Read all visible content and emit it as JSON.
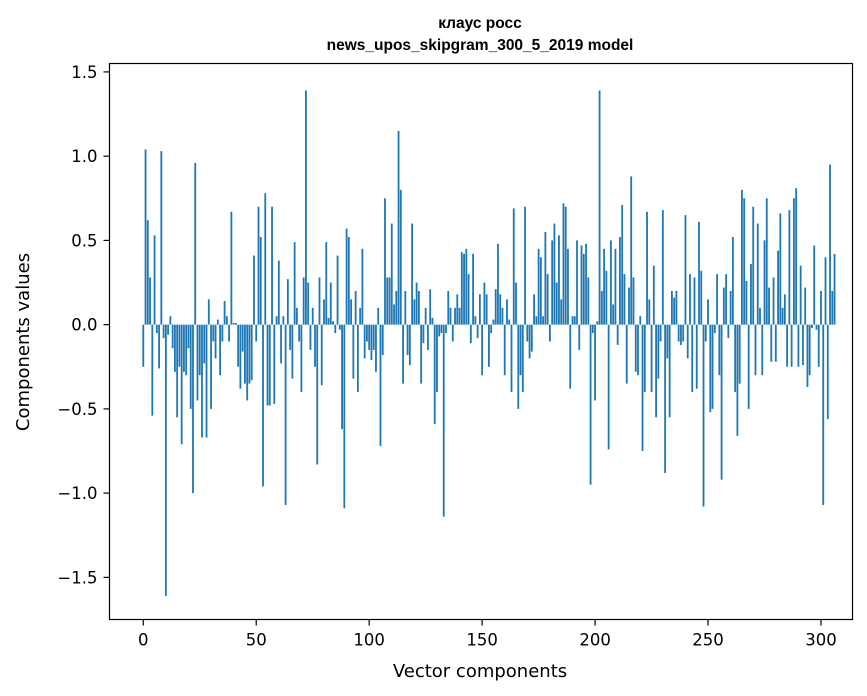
{
  "chart_data": {
    "type": "bar",
    "title_line1": "клаус росс",
    "title_line2": "news_upos_skipgram_300_5_2019 model",
    "xlabel": "Vector components",
    "ylabel": "Components values",
    "xlim": [
      -14.95,
      313.95
    ],
    "ylim": [
      -1.75,
      1.55
    ],
    "x_ticks": [
      0,
      50,
      100,
      150,
      200,
      250,
      300
    ],
    "x_tick_labels": [
      "0",
      "50",
      "100",
      "150",
      "200",
      "250",
      "300"
    ],
    "y_ticks": [
      1.5,
      1.0,
      0.5,
      0.0,
      -0.5,
      -1.0,
      -1.5
    ],
    "y_tick_labels": [
      "1.5",
      "1.0",
      "0.5",
      "0.0",
      "−0.5",
      "−1.0",
      "−1.5"
    ],
    "bar_color": "#1f77b4",
    "values": [
      -0.25,
      1.04,
      0.62,
      0.28,
      -0.54,
      0.53,
      -0.05,
      -0.26,
      1.03,
      -0.08,
      -1.61,
      -0.06,
      0.05,
      -0.14,
      -0.28,
      -0.55,
      -0.25,
      -0.71,
      -0.28,
      -0.3,
      -0.14,
      -0.5,
      -1.0,
      0.96,
      -0.45,
      -0.3,
      -0.67,
      -0.23,
      -0.67,
      0.15,
      -0.5,
      -0.1,
      -0.2,
      0.03,
      -0.3,
      -0.1,
      0.14,
      0.05,
      -0.1,
      0.67,
      0.01,
      0.01,
      -0.25,
      -0.38,
      -0.16,
      -0.35,
      -0.45,
      -0.35,
      -0.33,
      0.41,
      -0.1,
      0.7,
      0.52,
      -0.96,
      0.78,
      -0.48,
      -0.48,
      0.7,
      -0.47,
      0.05,
      0.38,
      -0.23,
      0.05,
      -1.07,
      0.27,
      -0.15,
      -0.32,
      0.49,
      0.1,
      -0.1,
      -0.4,
      0.28,
      1.39,
      0.25,
      -0.15,
      0.1,
      -0.25,
      -0.83,
      0.28,
      -0.36,
      0.15,
      0.49,
      0.04,
      0.25,
      0.02,
      -0.05,
      0.41,
      -0.03,
      -0.62,
      -1.09,
      0.57,
      0.52,
      0.15,
      -0.32,
      0.2,
      -0.4,
      0.1,
      0.45,
      -0.2,
      -0.1,
      -0.15,
      -0.21,
      -0.15,
      -0.28,
      0.1,
      -0.72,
      -0.18,
      0.75,
      0.28,
      0.28,
      0.6,
      0.12,
      0.2,
      1.15,
      0.8,
      -0.35,
      0.2,
      -0.18,
      -0.24,
      0.6,
      0.15,
      0.25,
      0.2,
      -0.35,
      -0.11,
      0.1,
      -0.15,
      0.21,
      0.04,
      -0.59,
      -0.4,
      -0.07,
      -0.05,
      -1.14,
      -0.05,
      0.2,
      0.1,
      -0.1,
      0.1,
      0.18,
      0.1,
      0.43,
      0.42,
      0.45,
      0.3,
      -0.11,
      0.42,
      0.05,
      -0.08,
      0.18,
      -0.3,
      0.25,
      0.18,
      -0.25,
      -0.05,
      0.03,
      0.21,
      0.48,
      0.18,
      0.1,
      -0.3,
      0.15,
      0.03,
      -0.4,
      0.69,
      0.25,
      -0.5,
      -0.3,
      -0.4,
      0.7,
      -0.1,
      -0.2,
      -0.16,
      0.18,
      0.05,
      0.45,
      0.4,
      0.05,
      0.55,
      0.3,
      -0.1,
      0.5,
      0.6,
      0.25,
      0.53,
      0.15,
      0.72,
      0.7,
      0.45,
      -0.38,
      0.05,
      0.05,
      0.5,
      -0.15,
      0.47,
      0.42,
      0.48,
      0.28,
      -0.95,
      -0.05,
      -0.45,
      0.02,
      1.39,
      0.2,
      0.45,
      0.32,
      -0.74,
      0.5,
      0.12,
      0.45,
      -0.12,
      0.52,
      0.71,
      0.3,
      -0.35,
      0.22,
      0.88,
      0.28,
      -0.28,
      -0.3,
      0.05,
      -0.75,
      -0.4,
      0.67,
      0.15,
      -0.4,
      0.35,
      -0.55,
      -0.32,
      -0.1,
      0.68,
      -0.88,
      -0.2,
      -0.55,
      0.2,
      0.16,
      0.2,
      -0.1,
      -0.12,
      -0.1,
      0.65,
      -0.2,
      0.3,
      -0.4,
      0.28,
      -0.38,
      0.61,
      0.32,
      -1.08,
      -0.1,
      0.15,
      -0.52,
      -0.5,
      -0.05,
      0.3,
      -0.3,
      -0.92,
      0.22,
      0.3,
      -0.08,
      0.2,
      0.52,
      -0.4,
      -0.66,
      -0.35,
      0.8,
      0.75,
      0.26,
      -0.5,
      0.36,
      0.7,
      -0.3,
      0.6,
      0.1,
      -0.3,
      0.5,
      0.75,
      0.22,
      -0.22,
      0.28,
      -0.22,
      0.44,
      0.66,
      0.1,
      0.18,
      -0.25,
      0.68,
      -0.25,
      0.75,
      0.81,
      -0.25,
      0.35,
      -0.24,
      0.22,
      -0.37,
      -0.3,
      -0.02,
      0.47,
      -0.03,
      -0.25,
      0.2,
      -1.07,
      0.4,
      -0.56,
      0.95,
      0.2,
      0.42
    ]
  }
}
